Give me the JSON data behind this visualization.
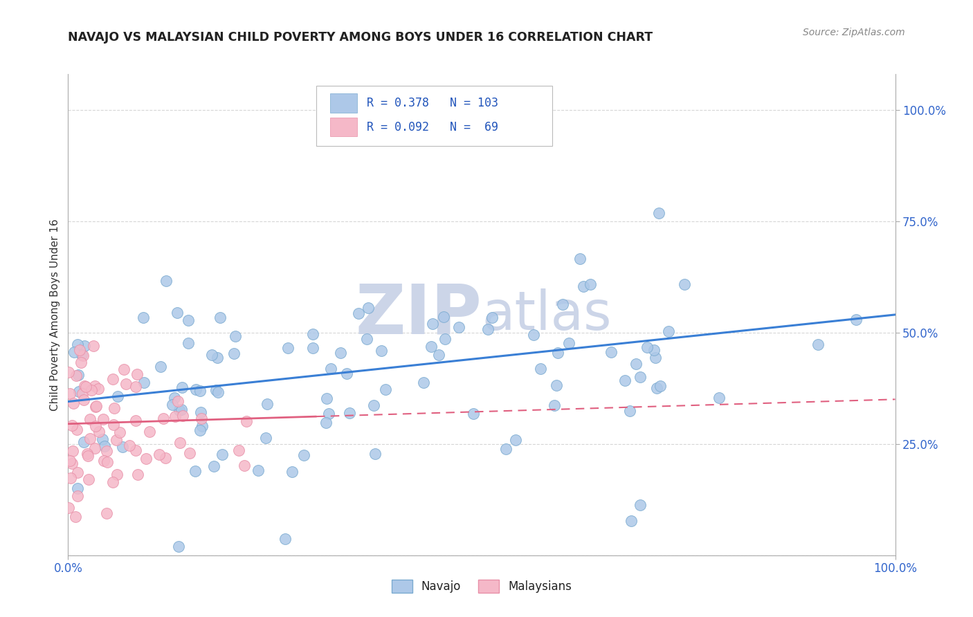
{
  "title": "NAVAJO VS MALAYSIAN CHILD POVERTY AMONG BOYS UNDER 16 CORRELATION CHART",
  "source_text": "Source: ZipAtlas.com",
  "ylabel": "Child Poverty Among Boys Under 16",
  "navajo_R": 0.378,
  "navajo_N": 103,
  "malaysian_R": 0.092,
  "malaysian_N": 69,
  "navajo_color": "#adc8e8",
  "navajo_edge_color": "#7aaad0",
  "malaysian_color": "#f5b8c8",
  "malaysian_edge_color": "#e890a8",
  "navajo_line_color": "#3a7fd5",
  "malaysian_line_color": "#e06080",
  "background_color": "#ffffff",
  "grid_color": "#cccccc",
  "title_color": "#222222",
  "legend_text_color": "#2255bb",
  "axis_label_color": "#3366cc",
  "watermark_color": "#ccd5e8",
  "nav_intercept": 0.345,
  "nav_slope": 0.195,
  "mal_intercept": 0.295,
  "mal_slope": 0.055
}
